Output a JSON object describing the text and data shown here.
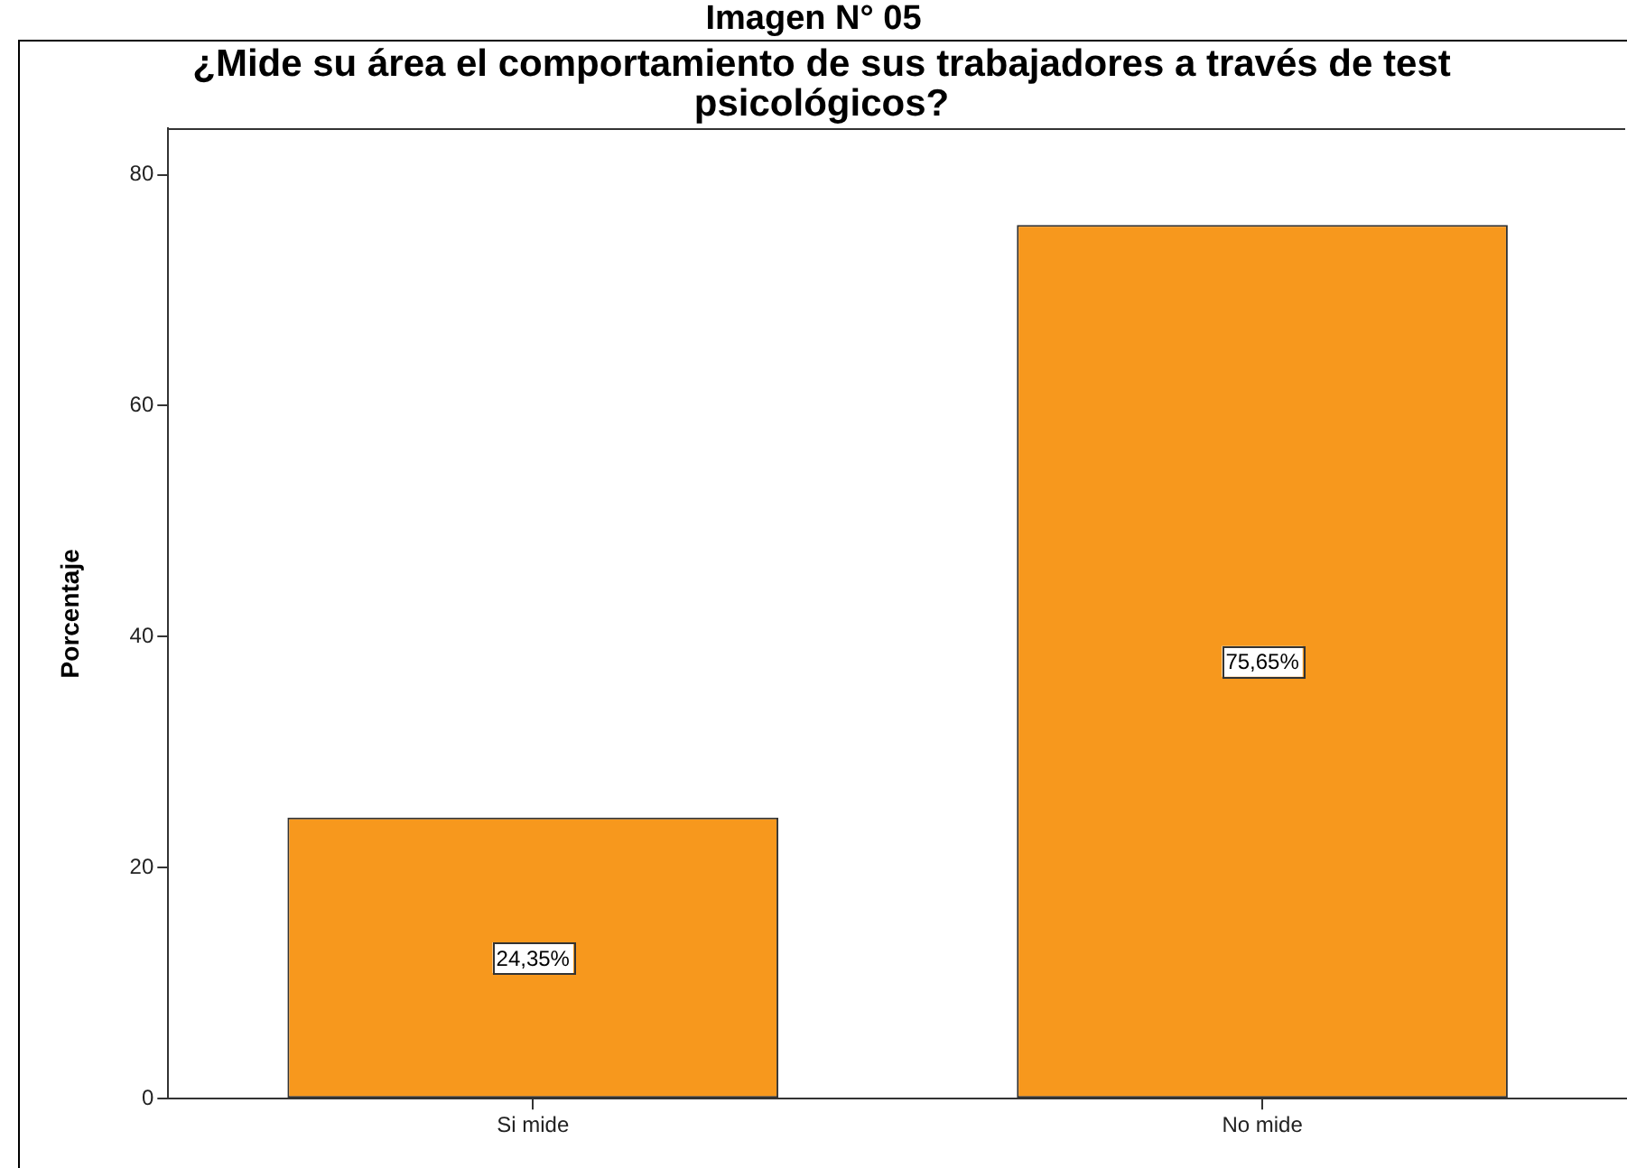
{
  "chart_data": {
    "type": "bar",
    "title": "Imagen N° 05",
    "subtitle": "¿Mide su área el comportamiento de sus trabajadores a través de test psicológicos?",
    "ylabel": "Porcentaje",
    "categories": [
      "Si mide",
      "No mide"
    ],
    "values": [
      24.35,
      75.65
    ],
    "color": "#f7981d",
    "value_labels": [
      "24,35%",
      "75,65%"
    ],
    "ylim": [
      0,
      84
    ],
    "yticks": [
      0,
      20,
      40,
      60,
      80
    ]
  }
}
